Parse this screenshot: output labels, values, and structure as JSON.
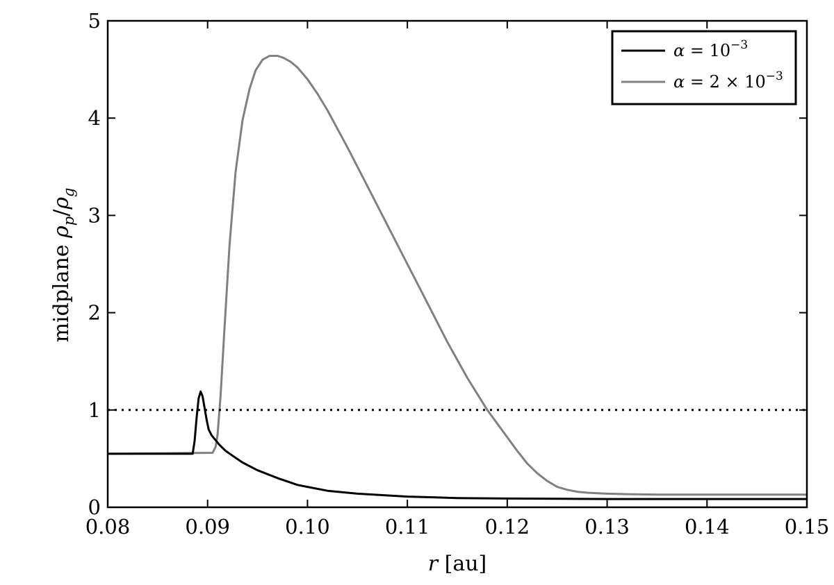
{
  "chart_data": {
    "type": "line",
    "xlabel": {
      "var": "r",
      "unit": " [au]"
    },
    "ylabel": {
      "prefix": "midplane ",
      "num": "ρ",
      "num_sub": "p",
      "den": "ρ",
      "den_sub": "g"
    },
    "xlim": [
      0.08,
      0.15
    ],
    "ylim": [
      0,
      5
    ],
    "x_ticks": [
      "0.08",
      "0.09",
      "0.10",
      "0.11",
      "0.12",
      "0.13",
      "0.14",
      "0.15"
    ],
    "y_ticks": [
      "0",
      "1",
      "2",
      "3",
      "4",
      "5"
    ],
    "grid": false,
    "legend_position": "top-right",
    "reference_line": {
      "y": 1,
      "style": "dotted",
      "color": "#000000"
    },
    "series": [
      {
        "name": "α = 10⁻³",
        "legend": {
          "sym": "α",
          "eq": " = 10",
          "sup": "−3"
        },
        "color": "#000000",
        "x": [
          0.0885,
          0.0887,
          0.0889,
          0.0891,
          0.0893,
          0.0895,
          0.0897,
          0.0899,
          0.0901,
          0.0904,
          0.0908,
          0.0912,
          0.0918,
          0.0925,
          0.0935,
          0.095,
          0.097,
          0.099,
          0.1,
          0.102,
          0.105,
          0.11,
          0.115,
          0.12,
          0.13,
          0.14,
          0.15
        ],
        "y": [
          0.55,
          0.68,
          0.92,
          1.12,
          1.19,
          1.14,
          1.02,
          0.9,
          0.8,
          0.74,
          0.69,
          0.64,
          0.58,
          0.53,
          0.46,
          0.38,
          0.3,
          0.23,
          0.21,
          0.17,
          0.14,
          0.11,
          0.095,
          0.09,
          0.085,
          0.085,
          0.085
        ]
      },
      {
        "name": "α = 2 × 10⁻³",
        "legend": {
          "sym": "α",
          "eq": " = 2 × 10",
          "sup": "−3"
        },
        "color": "#808080",
        "x": [
          0.0905,
          0.0908,
          0.091,
          0.0913,
          0.0917,
          0.0922,
          0.0928,
          0.0935,
          0.0942,
          0.0948,
          0.0955,
          0.0962,
          0.097,
          0.0976,
          0.0983,
          0.099,
          0.1,
          0.101,
          0.102,
          0.104,
          0.106,
          0.108,
          0.11,
          0.112,
          0.114,
          0.116,
          0.118,
          0.12,
          0.121,
          0.122,
          0.123,
          0.124,
          0.125,
          0.126,
          0.127,
          0.128,
          0.129,
          0.13,
          0.132,
          0.135,
          0.14,
          0.15
        ],
        "y": [
          0.56,
          0.62,
          0.75,
          1.15,
          1.85,
          2.7,
          3.45,
          3.98,
          4.3,
          4.49,
          4.6,
          4.64,
          4.64,
          4.62,
          4.58,
          4.52,
          4.4,
          4.25,
          4.08,
          3.7,
          3.3,
          2.9,
          2.5,
          2.1,
          1.7,
          1.33,
          1.0,
          0.72,
          0.58,
          0.45,
          0.35,
          0.27,
          0.21,
          0.18,
          0.16,
          0.15,
          0.145,
          0.14,
          0.135,
          0.13,
          0.13,
          0.13
        ]
      }
    ],
    "initial_flat_level": 0.55
  }
}
